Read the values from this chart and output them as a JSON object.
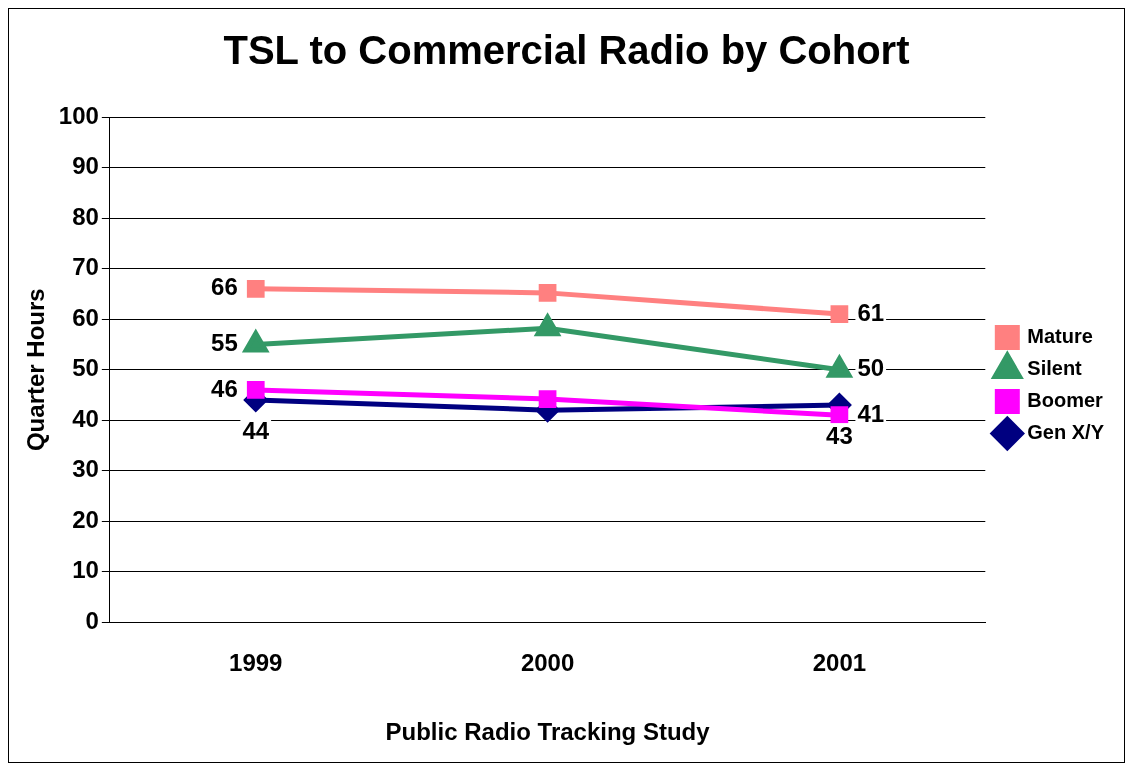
{
  "chart_data": {
    "type": "line",
    "title": "TSL to Commercial Radio by Cohort",
    "xlabel": "Public Radio Tracking Study",
    "ylabel": "Quarter Hours",
    "categories": [
      "1999",
      "2000",
      "2001"
    ],
    "series": [
      {
        "name": "Mature",
        "color": "#ff8080",
        "marker": "square",
        "values": [
          66,
          65.2,
          61
        ],
        "value_labels": [
          "66",
          null,
          "61"
        ]
      },
      {
        "name": "Silent",
        "color": "#339966",
        "marker": "triangle",
        "values": [
          55,
          58.2,
          50
        ],
        "value_labels": [
          "55",
          null,
          "50"
        ]
      },
      {
        "name": "Boomer",
        "color": "#ff00ff",
        "marker": "square",
        "values": [
          46,
          44.2,
          41
        ],
        "value_labels": [
          "46",
          null,
          "41"
        ]
      },
      {
        "name": "Gen X/Y",
        "color": "#000080",
        "marker": "diamond",
        "values": [
          44,
          42,
          43
        ],
        "value_labels": [
          "44",
          null,
          "43"
        ]
      }
    ],
    "ylim": [
      0,
      100
    ],
    "yticks": [
      0,
      10,
      20,
      30,
      40,
      50,
      60,
      70,
      80,
      90,
      100
    ],
    "grid": "y",
    "legend": "right",
    "line_style": "solid"
  }
}
